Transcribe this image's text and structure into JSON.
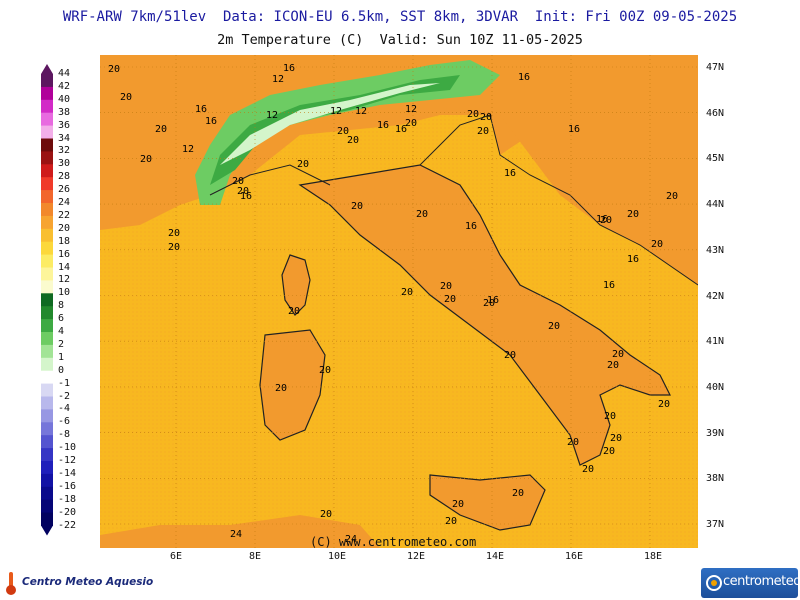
{
  "header": {
    "line1": "WRF-ARW 7km/51lev  Data: ICON-EU 6.5km, SST 8km, 3DVAR  Init: Fri 00Z 09-05-2025",
    "line2": "2m Temperature (C)  Valid: Sun 10Z 11-05-2025"
  },
  "legend": {
    "labels": [
      "44",
      "42",
      "40",
      "38",
      "36",
      "34",
      "32",
      "30",
      "28",
      "26",
      "24",
      "22",
      "20",
      "18",
      "16",
      "14",
      "12",
      "10",
      "8",
      "6",
      "4",
      "2",
      "1",
      "0",
      "-1",
      "-2",
      "-4",
      "-6",
      "-8",
      "-10",
      "-12",
      "-14",
      "-16",
      "-18",
      "-20",
      "-22"
    ],
    "colors": [
      "#5c1760",
      "#b0009a",
      "#d22ac7",
      "#e86ae0",
      "#f3aee9",
      "#6d0b0b",
      "#9a1212",
      "#cf1b1b",
      "#f03a2a",
      "#f2662c",
      "#f2882c",
      "#f7a431",
      "#f9bf31",
      "#fcd83b",
      "#fcec64",
      "#fdf59a",
      "#fbfbce",
      "#0f6a22",
      "#22892d",
      "#3daa43",
      "#6dcc63",
      "#a2e496",
      "#d4f5cb",
      "#ffffff",
      "#d8d8f3",
      "#b8b8ec",
      "#9797e3",
      "#7676da",
      "#5454d0",
      "#3535c5",
      "#1f1fbb",
      "#1212a5",
      "#0a0a8c",
      "#050576",
      "#020260"
    ]
  },
  "lat_labels": [
    "47N",
    "46N",
    "45N",
    "44N",
    "43N",
    "42N",
    "41N",
    "40N",
    "39N",
    "38N",
    "37N"
  ],
  "lon_labels": [
    "6E",
    "8E",
    "10E",
    "12E",
    "14E",
    "16E",
    "18E"
  ],
  "contour_labels": [
    "20",
    "20",
    "16",
    "16",
    "12",
    "12",
    "12",
    "12",
    "12",
    "16",
    "16",
    "12",
    "20",
    "20",
    "16",
    "20",
    "20",
    "20",
    "20",
    "20",
    "20",
    "16",
    "16",
    "20",
    "20",
    "20",
    "16",
    "20",
    "20",
    "20",
    "16",
    "16",
    "16",
    "20",
    "20",
    "20",
    "20",
    "16",
    "16",
    "20",
    "20",
    "20",
    "20",
    "20",
    "20",
    "20",
    "16",
    "20",
    "20",
    "20",
    "20",
    "20",
    "20",
    "20",
    "20",
    "20",
    "20",
    "24",
    "24",
    "20",
    "20",
    "20",
    "20",
    "20"
  ],
  "copyright": "(C) www.centrometeo.com",
  "logos": {
    "left": "Centro Meteo Aquesio",
    "right": "centrometeo"
  },
  "colors": {
    "sea_base": "#f8b820",
    "land_warm": "#f29a2e",
    "alps_green": "#3daa43",
    "header_blue": "#1a1aa0"
  }
}
